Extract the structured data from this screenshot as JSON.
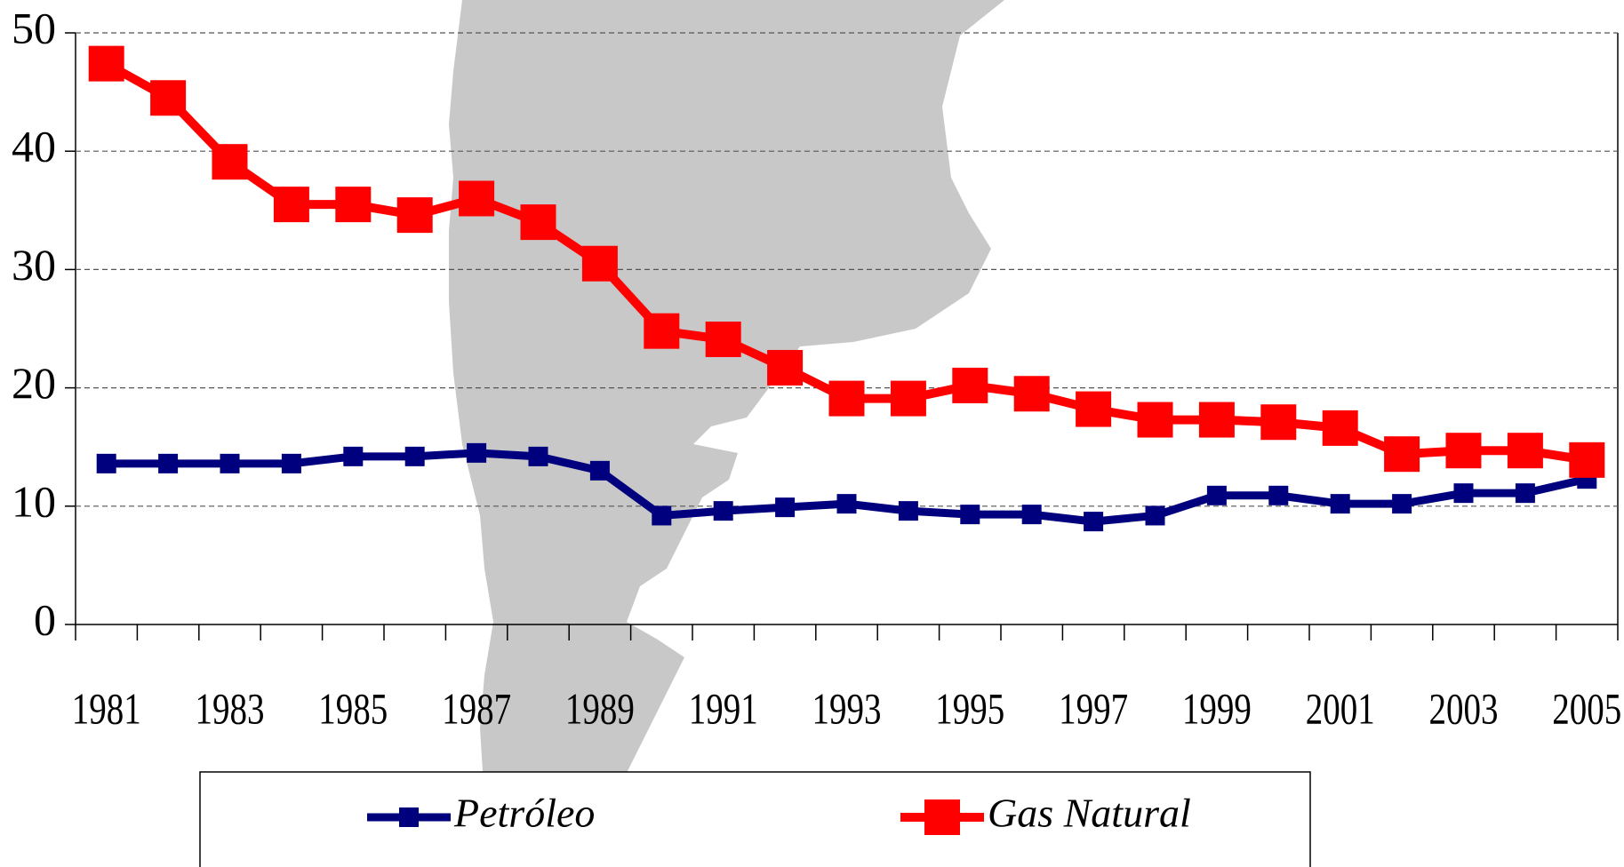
{
  "chart_data": {
    "type": "line",
    "categories": [
      "1981",
      null,
      "1983",
      null,
      "1985",
      null,
      "1987",
      null,
      "1989",
      null,
      "1991",
      null,
      "1993",
      null,
      "1995",
      null,
      "1997",
      null,
      "1999",
      null,
      "2001",
      null,
      "2003",
      null,
      "2005"
    ],
    "series": [
      {
        "name": "Petróleo",
        "color": "#00007f",
        "values": [
          13.6,
          13.6,
          13.6,
          13.6,
          14.2,
          14.2,
          14.5,
          14.2,
          13.0,
          9.2,
          9.6,
          9.9,
          10.2,
          9.6,
          9.3,
          9.3,
          8.7,
          9.2,
          10.9,
          10.9,
          10.2,
          10.2,
          11.1,
          11.1,
          12.3
        ]
      },
      {
        "name": "Gas Natural",
        "color": "#ff0000",
        "values": [
          47.4,
          44.5,
          39.1,
          35.5,
          35.5,
          34.6,
          36.0,
          34.0,
          30.5,
          24.8,
          24.1,
          21.7,
          19.1,
          19.1,
          20.2,
          19.5,
          18.2,
          17.3,
          17.3,
          17.1,
          16.6,
          14.4,
          14.7,
          14.7,
          13.9
        ]
      }
    ],
    "ylim": [
      0,
      50
    ],
    "yticks": [
      0,
      10,
      20,
      30,
      40,
      50
    ],
    "grid": true,
    "legend": "bottom"
  }
}
